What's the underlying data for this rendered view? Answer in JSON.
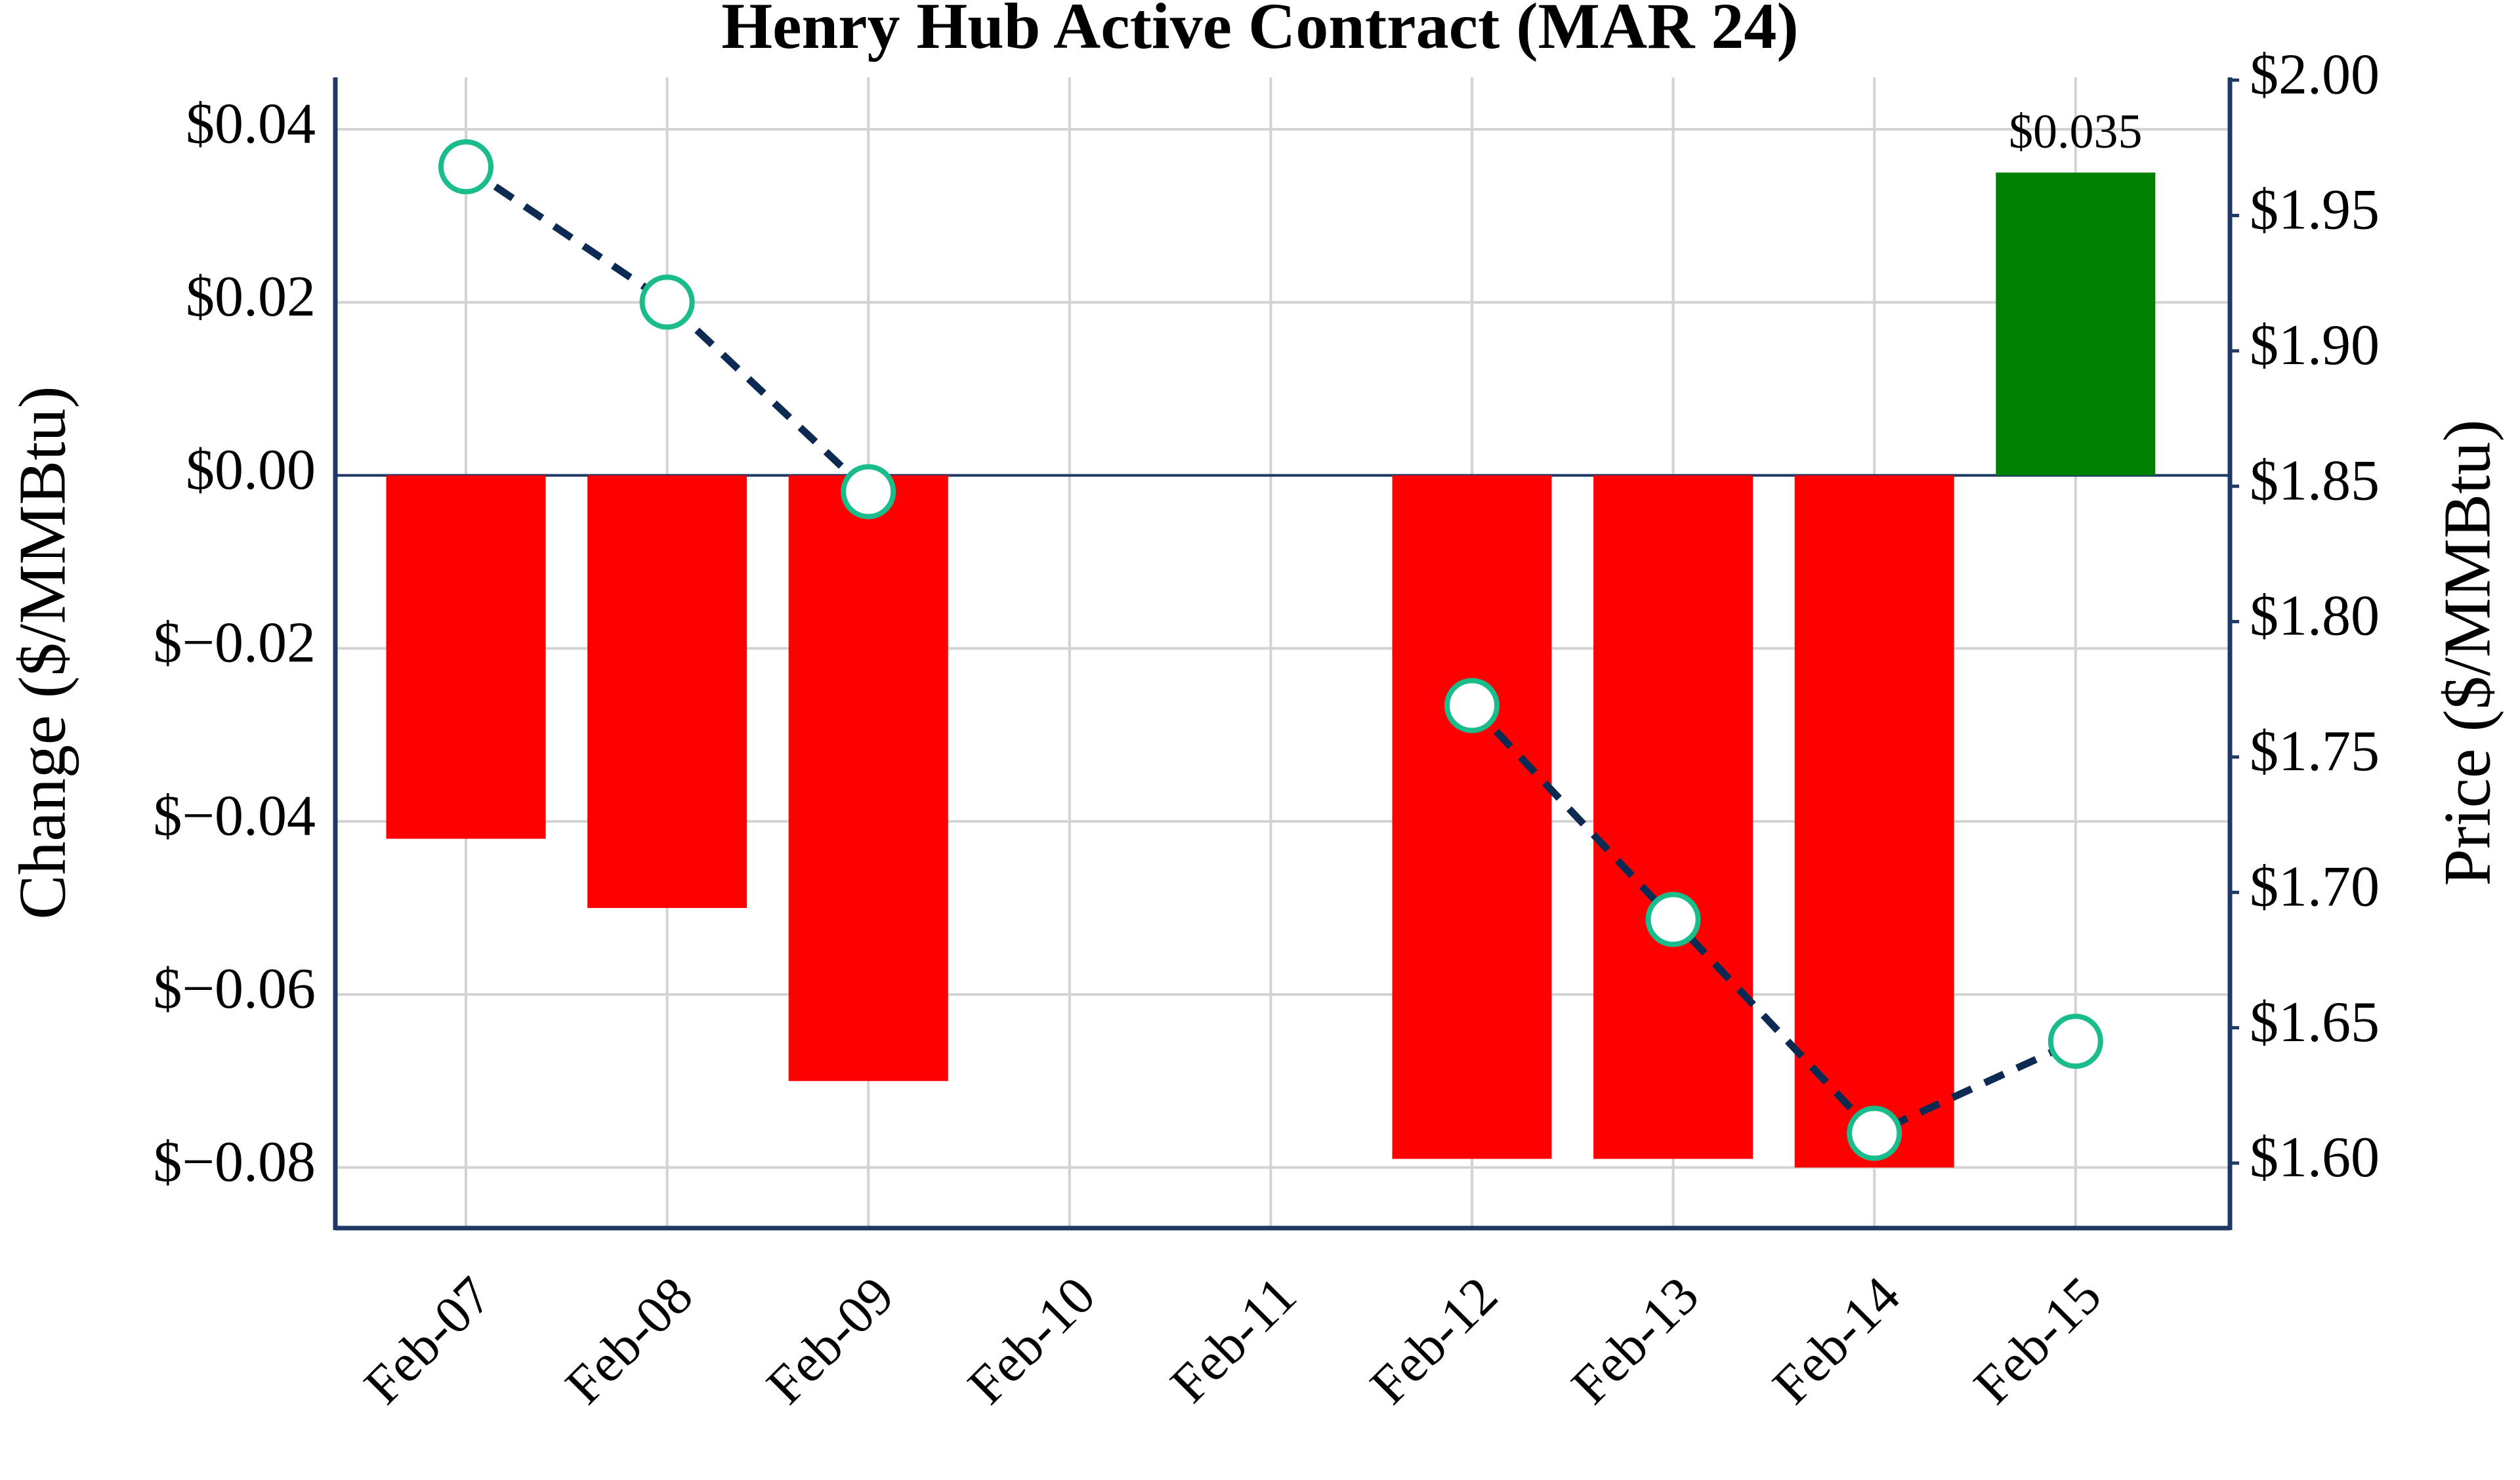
{
  "chart_data": {
    "type": "bar",
    "title": "Henry Hub Active Contract (MAR 24)",
    "ylabel": "Change ($/MMBtu)",
    "y2label": "Price ($/MMBtu)",
    "categories": [
      "Feb-07",
      "Feb-08",
      "Feb-09",
      "Feb-10",
      "Feb-11",
      "Feb-12",
      "Feb-13",
      "Feb-14",
      "Feb-15"
    ],
    "series": [
      {
        "type": "bar",
        "values": [
          -0.042,
          -0.05,
          -0.07,
          null,
          null,
          -0.079,
          -0.079,
          -0.08,
          0.035
        ],
        "colors": [
          "#ff0000",
          "#ff0000",
          "#ff0000",
          null,
          null,
          "#ff0000",
          "#ff0000",
          "#ff0000",
          "#008000"
        ],
        "value_labels": [
          null,
          null,
          null,
          null,
          null,
          null,
          null,
          null,
          "$0.035"
        ]
      },
      {
        "type": "line",
        "axis": "y2",
        "color": "#0d2b52",
        "marker_color": "#1abc8c",
        "dashed": true,
        "values": [
          1.968,
          1.918,
          1.848,
          null,
          null,
          1.769,
          1.69,
          1.611,
          1.645
        ]
      }
    ],
    "ylim": [
      -0.087,
      0.046
    ],
    "yticks": [
      {
        "value": -0.08,
        "label": "$−0.08"
      },
      {
        "value": -0.06,
        "label": "$−0.06"
      },
      {
        "value": -0.04,
        "label": "$−0.04"
      },
      {
        "value": -0.02,
        "label": "$−0.02"
      },
      {
        "value": 0,
        "label": "$0.00"
      },
      {
        "value": 0.02,
        "label": "$0.02"
      },
      {
        "value": 0.04,
        "label": "$0.04"
      }
    ],
    "y2lim": [
      1.576,
      2.001
    ],
    "y2ticks": [
      {
        "value": 1.6,
        "label": "$1.60"
      },
      {
        "value": 1.65,
        "label": "$1.65"
      },
      {
        "value": 1.7,
        "label": "$1.70"
      },
      {
        "value": 1.75,
        "label": "$1.75"
      },
      {
        "value": 1.8,
        "label": "$1.80"
      },
      {
        "value": 1.85,
        "label": "$1.85"
      },
      {
        "value": 1.9,
        "label": "$1.90"
      },
      {
        "value": 1.95,
        "label": "$1.95"
      },
      {
        "value": 2.0,
        "label": "$2.00"
      }
    ],
    "grid": true
  }
}
